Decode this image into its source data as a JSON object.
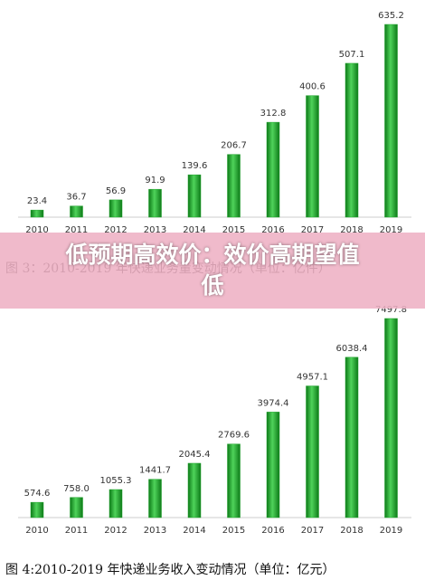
{
  "chart_data": [
    {
      "type": "bar",
      "categories": [
        "2010",
        "2011",
        "2012",
        "2013",
        "2014",
        "2015",
        "2016",
        "2017",
        "2018",
        "2019"
      ],
      "values": [
        23.4,
        36.7,
        56.9,
        91.9,
        139.6,
        206.7,
        312.8,
        400.6,
        507.1,
        635.2
      ],
      "color": "#1fa22b",
      "caption": "图 3：2010-2019 年快递业务量变动情况（单位：亿件）"
    },
    {
      "type": "bar",
      "categories": [
        "2010",
        "2011",
        "2012",
        "2013",
        "2014",
        "2015",
        "2016",
        "2017",
        "2018",
        "2019"
      ],
      "values": [
        574.6,
        758.0,
        1055.3,
        1441.7,
        2045.4,
        2769.6,
        3974.4,
        4957.1,
        6038.4,
        7497.8
      ],
      "value_labels": [
        "574.6",
        "758.0",
        "1055.3",
        "1441.7",
        "2045.4",
        "2769.6",
        "3974.4",
        "4957.1",
        "6038.4",
        "7497.8"
      ],
      "color": "#1fa22b",
      "caption": "图 4:2010-2019 年快递业务收入变动情况（单位：亿元）"
    }
  ],
  "banner": {
    "text": "低预期高效价：效价高期望值低"
  }
}
